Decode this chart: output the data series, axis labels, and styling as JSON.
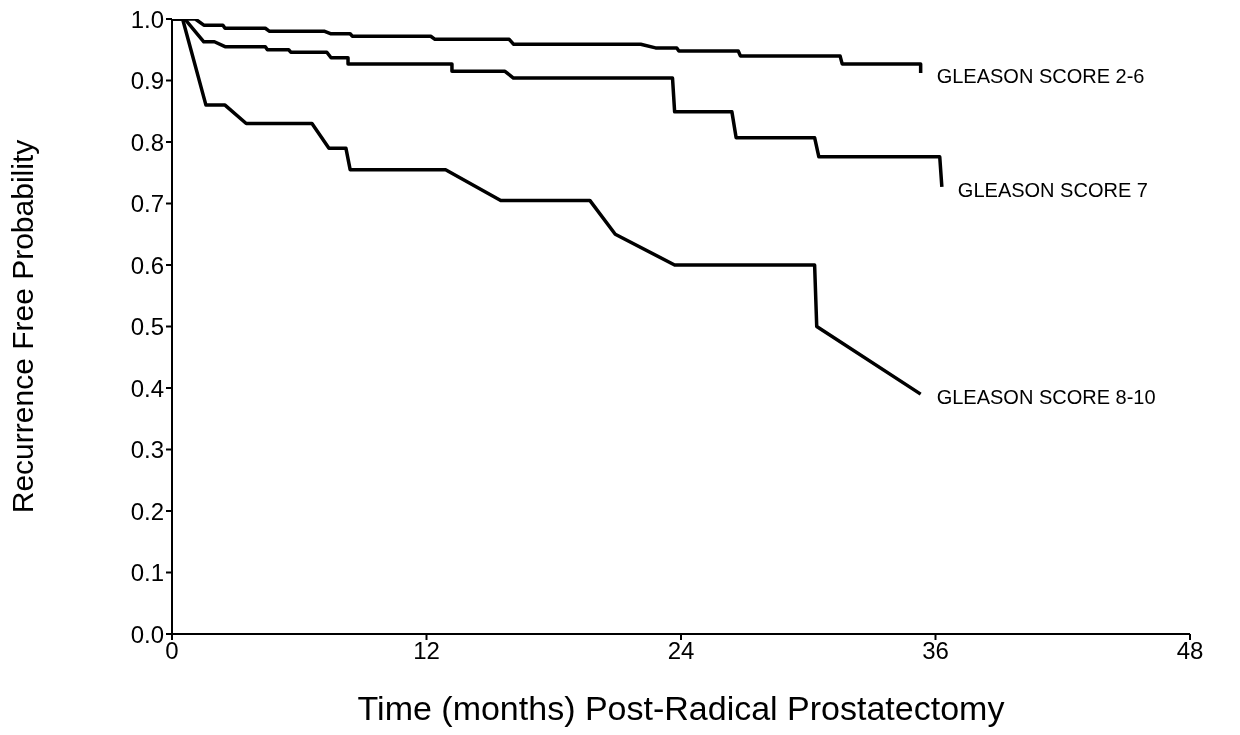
{
  "chart_data": {
    "type": "line",
    "xlabel": "Time (months) Post-Radical Prostatectomy",
    "ylabel": "Recurrence Free Probability",
    "xlim": [
      0,
      48
    ],
    "xticks": [
      0,
      12,
      24,
      36,
      48
    ],
    "ylim": [
      0,
      1
    ],
    "yticks": [
      {
        "value": 0,
        "label": "0.0"
      },
      0.1,
      0.2,
      0.3,
      0.4,
      0.5,
      0.6,
      0.7,
      0.8,
      0.9,
      {
        "value": 1,
        "label": "1.0"
      }
    ],
    "grid": false,
    "legend": false,
    "marker": "none",
    "line_style": "solid",
    "series": [
      {
        "name": "GLEASON SCORE 2-6",
        "color": "#000000",
        "x": [
          0,
          1.1,
          1.5,
          2.4,
          2.5,
          4.4,
          4.6,
          7.2,
          7.5,
          8.4,
          8.5,
          12.2,
          12.4,
          15.9,
          16.1,
          22.1,
          22.8,
          23.8,
          23.9,
          26.7,
          26.8,
          31.5,
          31.6,
          35.3,
          35.3
        ],
        "values": [
          1.0,
          1.0,
          0.99,
          0.99,
          0.985,
          0.985,
          0.98,
          0.98,
          0.976,
          0.976,
          0.972,
          0.972,
          0.967,
          0.967,
          0.959,
          0.959,
          0.953,
          0.953,
          0.948,
          0.948,
          0.94,
          0.94,
          0.927,
          0.927,
          0.912
        ]
      },
      {
        "name": "GLEASON SCORE 7",
        "color": "#000000",
        "x": [
          0,
          0.6,
          1.5,
          2.0,
          2.5,
          4.4,
          4.5,
          5.5,
          5.6,
          7.3,
          7.5,
          8.3,
          8.3,
          13.2,
          13.2,
          15.7,
          16.1,
          23.6,
          23.7,
          26.4,
          26.6,
          30.3,
          30.5,
          36.2,
          36.3
        ],
        "values": [
          1.0,
          1.0,
          0.963,
          0.963,
          0.955,
          0.955,
          0.95,
          0.95,
          0.946,
          0.946,
          0.937,
          0.937,
          0.927,
          0.927,
          0.915,
          0.915,
          0.904,
          0.904,
          0.849,
          0.849,
          0.807,
          0.807,
          0.776,
          0.776,
          0.727
        ]
      },
      {
        "name": "GLEASON SCORE 8-10",
        "color": "#000000",
        "x": [
          0,
          0.5,
          1.6,
          2.5,
          3.5,
          6.6,
          7.4,
          8.2,
          8.4,
          12.9,
          15.5,
          19.7,
          20.9,
          23.7,
          30.3,
          30.4,
          35.3
        ],
        "values": [
          1.0,
          1.0,
          0.86,
          0.86,
          0.83,
          0.83,
          0.79,
          0.79,
          0.755,
          0.755,
          0.705,
          0.705,
          0.65,
          0.6,
          0.6,
          0.5,
          0.39
        ]
      }
    ]
  }
}
